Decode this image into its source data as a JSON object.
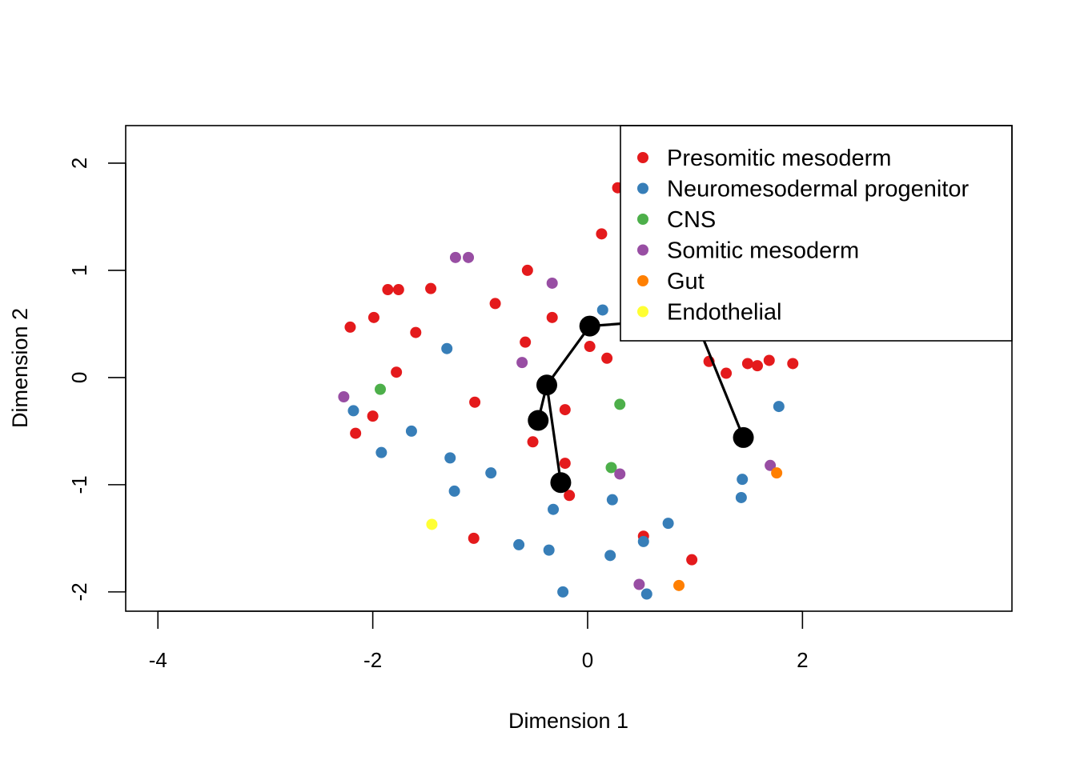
{
  "chart_data": {
    "type": "scatter",
    "xlabel": "Dimension 1",
    "ylabel": "Dimension 2",
    "xlim": [
      -4.3,
      3.95
    ],
    "ylim": [
      -2.18,
      2.35
    ],
    "xticks": [
      -4,
      -2,
      0,
      2
    ],
    "yticks": [
      -2,
      -1,
      0,
      1,
      2
    ],
    "grid": false,
    "legend_position": "top-right",
    "legend": [
      {
        "label": "Presomitic mesoderm",
        "color": "#E41A1C"
      },
      {
        "label": "Neuromesodermal progenitor",
        "color": "#377EB8"
      },
      {
        "label": "CNS",
        "color": "#4DAF4A"
      },
      {
        "label": "Somitic mesoderm",
        "color": "#984EA3"
      },
      {
        "label": "Gut",
        "color": "#FF7F00"
      },
      {
        "label": "Endothelial",
        "color": "#FFFF33"
      }
    ],
    "series": [
      {
        "name": "Presomitic mesoderm",
        "color": "#E41A1C",
        "points": [
          [
            0.28,
            1.77
          ],
          [
            0.13,
            1.34
          ],
          [
            -0.56,
            1.0
          ],
          [
            -1.86,
            0.82
          ],
          [
            -1.76,
            0.82
          ],
          [
            -1.46,
            0.83
          ],
          [
            -0.86,
            0.69
          ],
          [
            -2.21,
            0.47
          ],
          [
            -1.99,
            0.56
          ],
          [
            -1.6,
            0.42
          ],
          [
            -0.33,
            0.56
          ],
          [
            -0.58,
            0.33
          ],
          [
            0.02,
            0.29
          ],
          [
            0.18,
            0.18
          ],
          [
            -1.78,
            0.05
          ],
          [
            1.13,
            0.15
          ],
          [
            1.29,
            0.04
          ],
          [
            1.49,
            0.13
          ],
          [
            1.58,
            0.11
          ],
          [
            1.69,
            0.16
          ],
          [
            1.91,
            0.13
          ],
          [
            -1.05,
            -0.23
          ],
          [
            -2.0,
            -0.36
          ],
          [
            -2.16,
            -0.52
          ],
          [
            -0.21,
            -0.3
          ],
          [
            -0.51,
            -0.6
          ],
          [
            -0.21,
            -0.8
          ],
          [
            -0.17,
            -1.1
          ],
          [
            0.52,
            -1.48
          ],
          [
            -1.06,
            -1.5
          ],
          [
            0.97,
            -1.7
          ]
        ]
      },
      {
        "name": "Neuromesodermal progenitor",
        "color": "#377EB8",
        "points": [
          [
            0.14,
            0.63
          ],
          [
            -1.31,
            0.27
          ],
          [
            -2.18,
            -0.31
          ],
          [
            -1.64,
            -0.5
          ],
          [
            -1.92,
            -0.7
          ],
          [
            -1.28,
            -0.75
          ],
          [
            -0.9,
            -0.89
          ],
          [
            -1.24,
            -1.06
          ],
          [
            -0.32,
            -1.23
          ],
          [
            0.23,
            -1.14
          ],
          [
            1.78,
            -0.27
          ],
          [
            1.44,
            -0.95
          ],
          [
            1.43,
            -1.12
          ],
          [
            0.75,
            -1.36
          ],
          [
            0.52,
            -1.53
          ],
          [
            -0.64,
            -1.56
          ],
          [
            -0.36,
            -1.61
          ],
          [
            0.21,
            -1.66
          ],
          [
            -0.23,
            -2.0
          ],
          [
            0.55,
            -2.02
          ]
        ]
      },
      {
        "name": "CNS",
        "color": "#4DAF4A",
        "points": [
          [
            -1.93,
            -0.11
          ],
          [
            0.3,
            -0.25
          ],
          [
            0.22,
            -0.84
          ]
        ]
      },
      {
        "name": "Somitic mesoderm",
        "color": "#984EA3",
        "points": [
          [
            -1.23,
            1.12
          ],
          [
            -1.11,
            1.12
          ],
          [
            -0.33,
            0.88
          ],
          [
            -0.61,
            0.14
          ],
          [
            -2.27,
            -0.18
          ],
          [
            0.3,
            -0.9
          ],
          [
            1.7,
            -0.82
          ],
          [
            0.48,
            -1.93
          ]
        ]
      },
      {
        "name": "Gut",
        "color": "#FF7F00",
        "points": [
          [
            1.76,
            -0.89
          ],
          [
            0.85,
            -1.94
          ]
        ]
      },
      {
        "name": "Endothelial",
        "color": "#FFFF33",
        "points": [
          [
            -1.45,
            -1.37
          ]
        ]
      }
    ],
    "trajectory": [
      {
        "points": [
          [
            -0.46,
            -0.4
          ],
          [
            -0.38,
            -0.07
          ],
          [
            0.02,
            0.48
          ],
          [
            0.55,
            0.52
          ]
        ]
      },
      {
        "points": [
          [
            -0.38,
            -0.07
          ],
          [
            -0.25,
            -0.98
          ]
        ]
      },
      {
        "points": [
          [
            1.0,
            0.55
          ],
          [
            1.45,
            -0.56
          ]
        ]
      }
    ],
    "trajectory_nodes": [
      [
        -0.46,
        -0.4
      ],
      [
        -0.38,
        -0.07
      ],
      [
        0.02,
        0.48
      ],
      [
        -0.25,
        -0.98
      ],
      [
        1.45,
        -0.56
      ]
    ]
  }
}
